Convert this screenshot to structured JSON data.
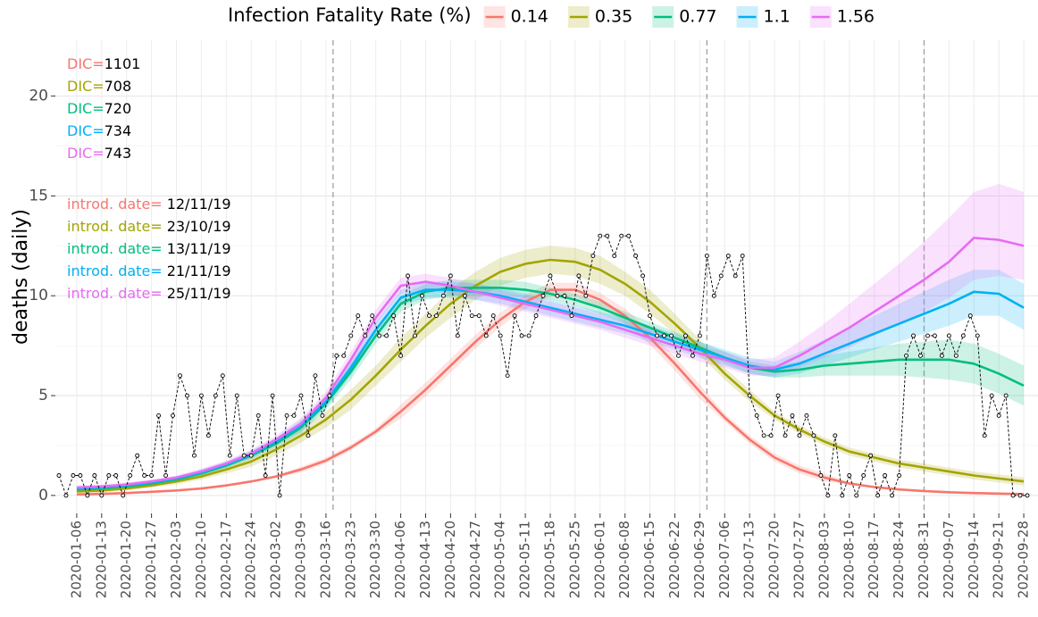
{
  "chart_data": {
    "type": "line",
    "legend_title": "Infection Fatality Rate (%)",
    "y_label": "deaths (daily)",
    "dic_label": "DIC=",
    "intro_label": "introd. date=",
    "xlim": [
      "2019-12-31",
      "2020-10-02"
    ],
    "ylim": [
      -0.9,
      22.8
    ],
    "yticks": [
      0,
      5,
      10,
      15,
      20
    ],
    "grid": true,
    "legend_position": "top",
    "vlines": [
      "2020-03-18",
      "2020-07-01",
      "2020-08-31"
    ],
    "xticks": [
      "2020-01-06",
      "2020-01-13",
      "2020-01-20",
      "2020-01-27",
      "2020-02-03",
      "2020-02-10",
      "2020-02-17",
      "2020-02-24",
      "2020-03-02",
      "2020-03-09",
      "2020-03-16",
      "2020-03-23",
      "2020-03-30",
      "2020-04-06",
      "2020-04-13",
      "2020-04-20",
      "2020-04-27",
      "2020-05-04",
      "2020-05-11",
      "2020-05-18",
      "2020-05-25",
      "2020-06-01",
      "2020-06-08",
      "2020-06-15",
      "2020-06-22",
      "2020-06-29",
      "2020-07-06",
      "2020-07-13",
      "2020-07-20",
      "2020-07-27",
      "2020-08-03",
      "2020-08-10",
      "2020-08-17",
      "2020-08-24",
      "2020-08-31",
      "2020-09-07",
      "2020-09-14",
      "2020-09-21",
      "2020-09-28"
    ],
    "x": [
      "2020-01-06",
      "2020-01-13",
      "2020-01-20",
      "2020-01-27",
      "2020-02-03",
      "2020-02-10",
      "2020-02-17",
      "2020-02-24",
      "2020-03-02",
      "2020-03-09",
      "2020-03-16",
      "2020-03-23",
      "2020-03-30",
      "2020-04-06",
      "2020-04-13",
      "2020-04-20",
      "2020-04-27",
      "2020-05-04",
      "2020-05-11",
      "2020-05-18",
      "2020-05-25",
      "2020-06-01",
      "2020-06-08",
      "2020-06-15",
      "2020-06-22",
      "2020-06-29",
      "2020-07-06",
      "2020-07-13",
      "2020-07-20",
      "2020-07-27",
      "2020-08-03",
      "2020-08-10",
      "2020-08-17",
      "2020-08-24",
      "2020-08-31",
      "2020-09-07",
      "2020-09-14",
      "2020-09-21",
      "2020-09-28"
    ],
    "series": [
      {
        "name": "0.14",
        "color": "#F8766D",
        "dic": 1101,
        "intro_date": "12/11/19",
        "values": [
          0.05,
          0.08,
          0.12,
          0.18,
          0.25,
          0.35,
          0.5,
          0.7,
          0.95,
          1.3,
          1.75,
          2.4,
          3.2,
          4.2,
          5.3,
          6.5,
          7.7,
          8.8,
          9.7,
          10.3,
          10.3,
          9.8,
          9.0,
          7.9,
          6.6,
          5.2,
          3.9,
          2.8,
          1.9,
          1.3,
          0.9,
          0.6,
          0.42,
          0.3,
          0.22,
          0.16,
          0.12,
          0.09,
          0.07
        ],
        "lower": [
          0,
          0.03,
          0.07,
          0.13,
          0.2,
          0.3,
          0.45,
          0.65,
          0.9,
          1.15,
          1.6,
          2.25,
          3.05,
          3.85,
          4.95,
          6.15,
          7.35,
          8.45,
          9.35,
          9.95,
          9.95,
          9.45,
          8.65,
          7.55,
          6.25,
          4.85,
          3.7,
          2.6,
          1.7,
          1.1,
          0.7,
          0.55,
          0.37,
          0.25,
          0.17,
          0.11,
          0.07,
          0.04,
          0.02
        ],
        "upper": [
          0.1,
          0.13,
          0.17,
          0.23,
          0.3,
          0.4,
          0.55,
          0.75,
          1.0,
          1.45,
          1.9,
          2.55,
          3.35,
          4.55,
          5.65,
          6.85,
          8.05,
          9.15,
          10.05,
          10.65,
          10.65,
          10.15,
          9.35,
          8.25,
          6.95,
          5.55,
          4.1,
          3.0,
          2.1,
          1.5,
          1.1,
          0.65,
          0.47,
          0.35,
          0.27,
          0.21,
          0.17,
          0.14,
          0.12
        ]
      },
      {
        "name": "0.35",
        "color": "#A3A500",
        "dic": 708,
        "intro_date": "23/10/19",
        "values": [
          0.2,
          0.25,
          0.35,
          0.5,
          0.7,
          0.95,
          1.3,
          1.7,
          2.3,
          3.0,
          3.8,
          4.8,
          6.0,
          7.3,
          8.5,
          9.6,
          10.5,
          11.2,
          11.6,
          11.8,
          11.7,
          11.3,
          10.6,
          9.7,
          8.6,
          7.4,
          6.1,
          5.0,
          4.0,
          3.3,
          2.7,
          2.2,
          1.9,
          1.6,
          1.4,
          1.2,
          1.0,
          0.85,
          0.7
        ],
        "lower": [
          0.1,
          0.15,
          0.25,
          0.4,
          0.55,
          0.8,
          1.1,
          1.45,
          2.0,
          2.65,
          3.4,
          4.3,
          5.5,
          6.7,
          7.9,
          8.9,
          9.8,
          10.5,
          10.9,
          11.1,
          11.0,
          10.6,
          10.0,
          9.1,
          8.1,
          7.0,
          5.8,
          4.7,
          3.8,
          3.1,
          2.5,
          2.0,
          1.7,
          1.4,
          1.2,
          1.0,
          0.8,
          0.65,
          0.5
        ],
        "upper": [
          0.3,
          0.35,
          0.45,
          0.6,
          0.85,
          1.1,
          1.5,
          1.95,
          2.6,
          3.35,
          4.2,
          5.3,
          6.5,
          7.9,
          9.1,
          10.3,
          11.2,
          11.9,
          12.3,
          12.5,
          12.4,
          12.0,
          11.2,
          10.3,
          9.1,
          7.8,
          6.4,
          5.3,
          4.2,
          3.5,
          2.9,
          2.4,
          2.1,
          1.8,
          1.6,
          1.4,
          1.2,
          1.05,
          0.9
        ]
      },
      {
        "name": "0.77",
        "color": "#00BF7D",
        "dic": 720,
        "intro_date": "13/11/19",
        "values": [
          0.3,
          0.35,
          0.45,
          0.6,
          0.8,
          1.1,
          1.5,
          2.0,
          2.6,
          3.4,
          4.6,
          6.2,
          8.0,
          9.6,
          10.2,
          10.4,
          10.4,
          10.4,
          10.3,
          10.1,
          9.8,
          9.4,
          8.9,
          8.4,
          7.9,
          7.4,
          6.9,
          6.4,
          6.2,
          6.3,
          6.5,
          6.6,
          6.7,
          6.8,
          6.8,
          6.8,
          6.6,
          6.1,
          5.5
        ],
        "lower": [
          0.2,
          0.25,
          0.35,
          0.5,
          0.7,
          0.95,
          1.35,
          1.8,
          2.4,
          3.1,
          4.3,
          5.8,
          7.6,
          9.2,
          9.8,
          10.0,
          10.0,
          10.0,
          9.9,
          9.8,
          9.5,
          9.1,
          8.6,
          8.1,
          7.6,
          7.1,
          6.6,
          6.1,
          5.9,
          5.9,
          6.0,
          6.0,
          6.0,
          6.0,
          5.9,
          5.8,
          5.6,
          5.1,
          4.5
        ],
        "upper": [
          0.4,
          0.45,
          0.55,
          0.7,
          0.9,
          1.25,
          1.65,
          2.2,
          2.8,
          3.7,
          4.9,
          6.6,
          8.4,
          10.0,
          10.6,
          10.8,
          10.8,
          10.8,
          10.7,
          10.4,
          10.1,
          9.7,
          9.2,
          8.7,
          8.2,
          7.7,
          7.2,
          6.7,
          6.5,
          6.7,
          7.0,
          7.2,
          7.4,
          7.6,
          7.7,
          7.8,
          7.6,
          7.1,
          6.5
        ]
      },
      {
        "name": "1.1",
        "color": "#00B0F6",
        "dic": 734,
        "intro_date": "21/11/19",
        "values": [
          0.35,
          0.4,
          0.5,
          0.65,
          0.85,
          1.15,
          1.55,
          2.05,
          2.7,
          3.5,
          4.7,
          6.4,
          8.3,
          9.9,
          10.3,
          10.3,
          10.2,
          10.0,
          9.7,
          9.4,
          9.1,
          8.8,
          8.5,
          8.1,
          7.7,
          7.3,
          6.9,
          6.5,
          6.3,
          6.6,
          7.1,
          7.6,
          8.1,
          8.6,
          9.1,
          9.6,
          10.2,
          10.1,
          9.4
        ],
        "lower": [
          0.25,
          0.3,
          0.4,
          0.55,
          0.75,
          1.0,
          1.4,
          1.85,
          2.5,
          3.2,
          4.4,
          6.0,
          7.9,
          9.5,
          9.9,
          9.9,
          9.8,
          9.6,
          9.3,
          9.0,
          8.7,
          8.4,
          8.1,
          7.7,
          7.3,
          6.9,
          6.5,
          6.1,
          5.9,
          6.1,
          6.5,
          6.9,
          7.3,
          7.7,
          8.1,
          8.5,
          9.0,
          9.0,
          8.3
        ],
        "upper": [
          0.45,
          0.5,
          0.6,
          0.75,
          0.95,
          1.3,
          1.7,
          2.25,
          2.9,
          3.8,
          5.0,
          6.8,
          8.7,
          10.3,
          10.7,
          10.7,
          10.6,
          10.4,
          10.1,
          9.8,
          9.5,
          9.2,
          8.9,
          8.5,
          8.1,
          7.7,
          7.3,
          6.9,
          6.7,
          7.2,
          7.8,
          8.4,
          9.0,
          9.6,
          10.2,
          10.8,
          11.3,
          11.3,
          10.6
        ]
      },
      {
        "name": "1.56",
        "color": "#E76BF3",
        "dic": 743,
        "intro_date": "25/11/19",
        "values": [
          0.4,
          0.45,
          0.55,
          0.7,
          0.9,
          1.2,
          1.6,
          2.1,
          2.8,
          3.6,
          4.9,
          6.8,
          8.9,
          10.5,
          10.7,
          10.5,
          10.2,
          9.9,
          9.6,
          9.3,
          9.0,
          8.7,
          8.3,
          7.9,
          7.5,
          7.1,
          6.8,
          6.4,
          6.4,
          7.0,
          7.7,
          8.4,
          9.2,
          10.0,
          10.8,
          11.7,
          12.9,
          12.8,
          12.5
        ],
        "lower": [
          0.3,
          0.35,
          0.45,
          0.6,
          0.8,
          1.05,
          1.45,
          1.9,
          2.6,
          3.3,
          4.6,
          6.4,
          8.5,
          10.1,
          10.3,
          10.1,
          9.8,
          9.5,
          9.2,
          8.9,
          8.6,
          8.3,
          7.9,
          7.5,
          7.1,
          6.7,
          6.4,
          6.0,
          6.0,
          6.4,
          6.9,
          7.4,
          8.0,
          8.6,
          9.2,
          9.9,
          10.8,
          11.0,
          10.8
        ],
        "upper": [
          0.5,
          0.55,
          0.65,
          0.8,
          1.0,
          1.35,
          1.75,
          2.3,
          3.0,
          3.9,
          5.2,
          7.2,
          9.3,
          10.9,
          11.1,
          10.9,
          10.6,
          10.3,
          10.0,
          9.7,
          9.4,
          9.1,
          8.7,
          8.3,
          7.9,
          7.5,
          7.2,
          6.8,
          6.9,
          7.7,
          8.6,
          9.6,
          10.6,
          11.6,
          12.7,
          13.9,
          15.2,
          15.6,
          15.2
        ]
      }
    ],
    "observed": {
      "color": "#000000",
      "x": [
        "2020-01-01",
        "2020-01-03",
        "2020-01-05",
        "2020-01-07",
        "2020-01-09",
        "2020-01-11",
        "2020-01-13",
        "2020-01-15",
        "2020-01-17",
        "2020-01-19",
        "2020-01-21",
        "2020-01-23",
        "2020-01-25",
        "2020-01-27",
        "2020-01-29",
        "2020-01-31",
        "2020-02-02",
        "2020-02-04",
        "2020-02-06",
        "2020-02-08",
        "2020-02-10",
        "2020-02-12",
        "2020-02-14",
        "2020-02-16",
        "2020-02-18",
        "2020-02-20",
        "2020-02-22",
        "2020-02-24",
        "2020-02-26",
        "2020-02-28",
        "2020-03-01",
        "2020-03-03",
        "2020-03-05",
        "2020-03-07",
        "2020-03-09",
        "2020-03-11",
        "2020-03-13",
        "2020-03-15",
        "2020-03-17",
        "2020-03-19",
        "2020-03-21",
        "2020-03-23",
        "2020-03-25",
        "2020-03-27",
        "2020-03-29",
        "2020-03-31",
        "2020-04-02",
        "2020-04-04",
        "2020-04-06",
        "2020-04-08",
        "2020-04-10",
        "2020-04-12",
        "2020-04-14",
        "2020-04-16",
        "2020-04-18",
        "2020-04-20",
        "2020-04-22",
        "2020-04-24",
        "2020-04-26",
        "2020-04-28",
        "2020-04-30",
        "2020-05-02",
        "2020-05-04",
        "2020-05-06",
        "2020-05-08",
        "2020-05-10",
        "2020-05-12",
        "2020-05-14",
        "2020-05-16",
        "2020-05-18",
        "2020-05-20",
        "2020-05-22",
        "2020-05-24",
        "2020-05-26",
        "2020-05-28",
        "2020-05-30",
        "2020-06-01",
        "2020-06-03",
        "2020-06-05",
        "2020-06-07",
        "2020-06-09",
        "2020-06-11",
        "2020-06-13",
        "2020-06-15",
        "2020-06-17",
        "2020-06-19",
        "2020-06-21",
        "2020-06-23",
        "2020-06-25",
        "2020-06-27",
        "2020-06-29",
        "2020-07-01",
        "2020-07-03",
        "2020-07-05",
        "2020-07-07",
        "2020-07-09",
        "2020-07-11",
        "2020-07-13",
        "2020-07-15",
        "2020-07-17",
        "2020-07-19",
        "2020-07-21",
        "2020-07-23",
        "2020-07-25",
        "2020-07-27",
        "2020-07-29",
        "2020-07-31",
        "2020-08-02",
        "2020-08-04",
        "2020-08-06",
        "2020-08-08",
        "2020-08-10",
        "2020-08-12",
        "2020-08-14",
        "2020-08-16",
        "2020-08-18",
        "2020-08-20",
        "2020-08-22",
        "2020-08-24",
        "2020-08-26",
        "2020-08-28",
        "2020-08-30",
        "2020-09-01",
        "2020-09-03",
        "2020-09-05",
        "2020-09-07",
        "2020-09-09",
        "2020-09-11",
        "2020-09-13",
        "2020-09-15",
        "2020-09-17",
        "2020-09-19",
        "2020-09-21",
        "2020-09-23",
        "2020-09-25",
        "2020-09-27",
        "2020-09-29"
      ],
      "values": [
        1,
        0,
        1,
        1,
        0,
        1,
        0,
        1,
        1,
        0,
        1,
        2,
        1,
        1,
        4,
        1,
        4,
        6,
        5,
        2,
        5,
        3,
        5,
        6,
        2,
        5,
        2,
        2,
        4,
        1,
        5,
        0,
        4,
        4,
        5,
        3,
        6,
        4,
        5,
        7,
        7,
        8,
        9,
        8,
        9,
        8,
        8,
        9,
        7,
        11,
        8,
        10,
        9,
        9,
        10,
        11,
        8,
        10,
        9,
        9,
        8,
        9,
        8,
        6,
        9,
        8,
        8,
        9,
        10,
        11,
        10,
        10,
        9,
        11,
        10,
        12,
        13,
        13,
        12,
        13,
        13,
        12,
        11,
        9,
        8,
        8,
        8,
        7,
        8,
        7,
        8,
        12,
        10,
        11,
        12,
        11,
        12,
        5,
        4,
        3,
        3,
        5,
        3,
        4,
        3,
        4,
        3,
        1,
        0,
        3,
        0,
        1,
        0,
        1,
        2,
        0,
        1,
        0,
        1,
        7,
        8,
        7,
        8,
        8,
        7,
        8,
        7,
        8,
        9,
        8,
        3,
        5,
        4,
        5,
        0,
        0,
        0
      ]
    }
  }
}
